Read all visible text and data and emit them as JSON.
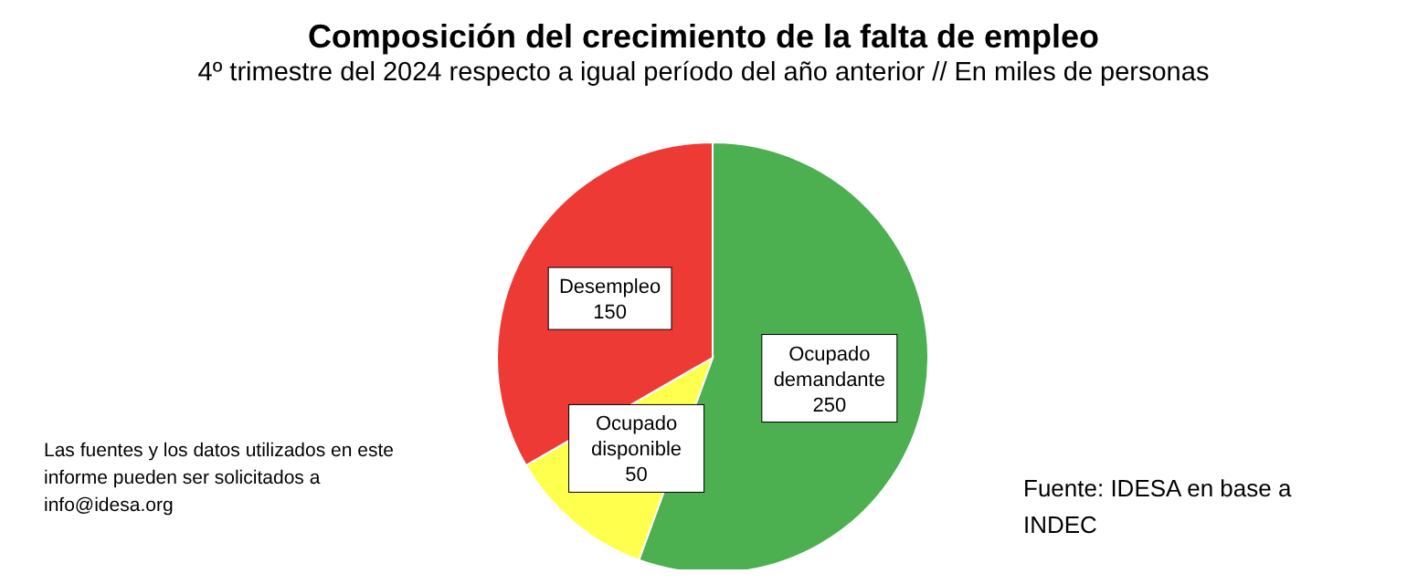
{
  "chart_data": {
    "type": "pie",
    "title": "Composición del crecimiento de la falta de empleo",
    "subtitle": "4º trimestre del 2024 respecto a igual período del año anterior // En miles de personas",
    "categories": [
      "Ocupado demandante",
      "Ocupado disponible",
      "Desempleo"
    ],
    "values": [
      250,
      50,
      150
    ],
    "colors": [
      "#4caf50",
      "#ffff4d",
      "#ee3a35"
    ],
    "data_labels": true,
    "annotations": [
      "Las fuentes y los datos utilizados en este informe pueden ser solicitados a info@idesa.org",
      "Fuente: IDESA en base a INDEC"
    ]
  }
}
